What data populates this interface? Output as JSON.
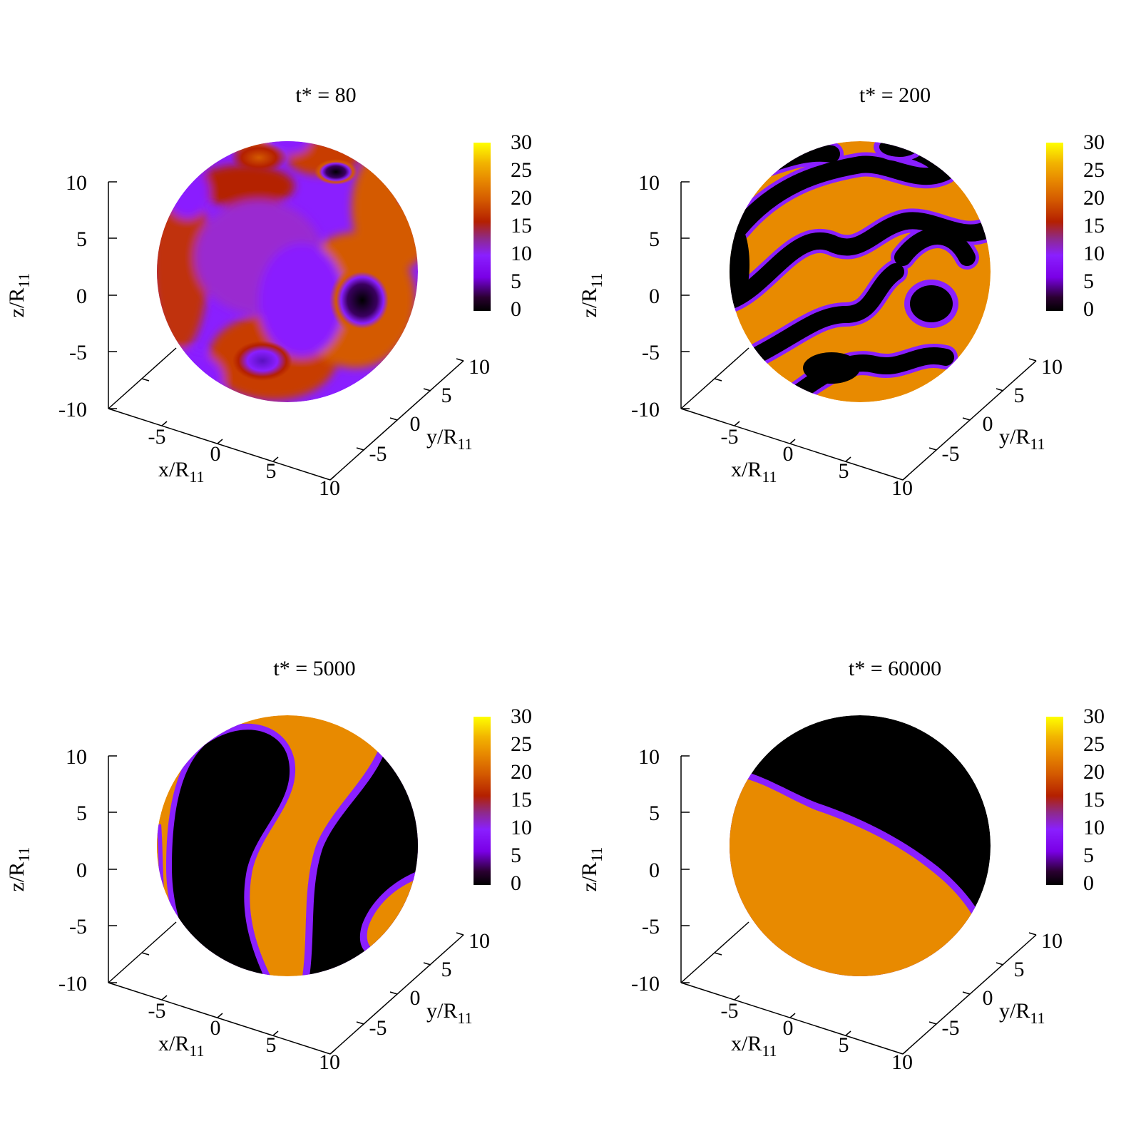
{
  "colorbar": {
    "ticks": [
      "30",
      "25",
      "20",
      "15",
      "10",
      "5",
      "0"
    ],
    "values": [
      30,
      25,
      20,
      15,
      10,
      5,
      0
    ],
    "colors": [
      "#000000",
      "#2a0030",
      "#7a00e6",
      "#8a1fff",
      "#8e2a8a",
      "#b42000",
      "#d45a00",
      "#e88a00",
      "#f2b400",
      "#ffe000",
      "#ffff00"
    ]
  },
  "axes": {
    "x_label": "x/R",
    "y_label": "y/R",
    "z_label": "z/R",
    "subscript": "11",
    "x_ticks": [
      "-5",
      "0",
      "5",
      "10"
    ],
    "y_ticks": [
      "-5",
      "0",
      "5",
      "10"
    ],
    "z_ticks": [
      "10",
      "5",
      "0",
      "-5",
      "-10"
    ]
  },
  "chart_data": [
    {
      "type": "heatmap",
      "title": "t* = 80",
      "description_pattern": "mixed",
      "colorbar_range": [
        0,
        30
      ],
      "x_range": [
        -10,
        10
      ],
      "y_range": [
        -10,
        10
      ],
      "z_range": [
        -10,
        10
      ]
    },
    {
      "type": "heatmap",
      "title": "t* = 200",
      "description_pattern": "labyrinth",
      "colorbar_range": [
        0,
        30
      ],
      "x_range": [
        -10,
        10
      ],
      "y_range": [
        -10,
        10
      ],
      "z_range": [
        -10,
        10
      ]
    },
    {
      "type": "heatmap",
      "title": "t* = 5000",
      "description_pattern": "bands",
      "colorbar_range": [
        0,
        30
      ],
      "x_range": [
        -10,
        10
      ],
      "y_range": [
        -10,
        10
      ],
      "z_range": [
        -10,
        10
      ]
    },
    {
      "type": "heatmap",
      "title": "t* = 60000",
      "description_pattern": "two-domain",
      "colorbar_range": [
        0,
        30
      ],
      "x_range": [
        -10,
        10
      ],
      "y_range": [
        -10,
        10
      ],
      "z_range": [
        -10,
        10
      ]
    }
  ]
}
